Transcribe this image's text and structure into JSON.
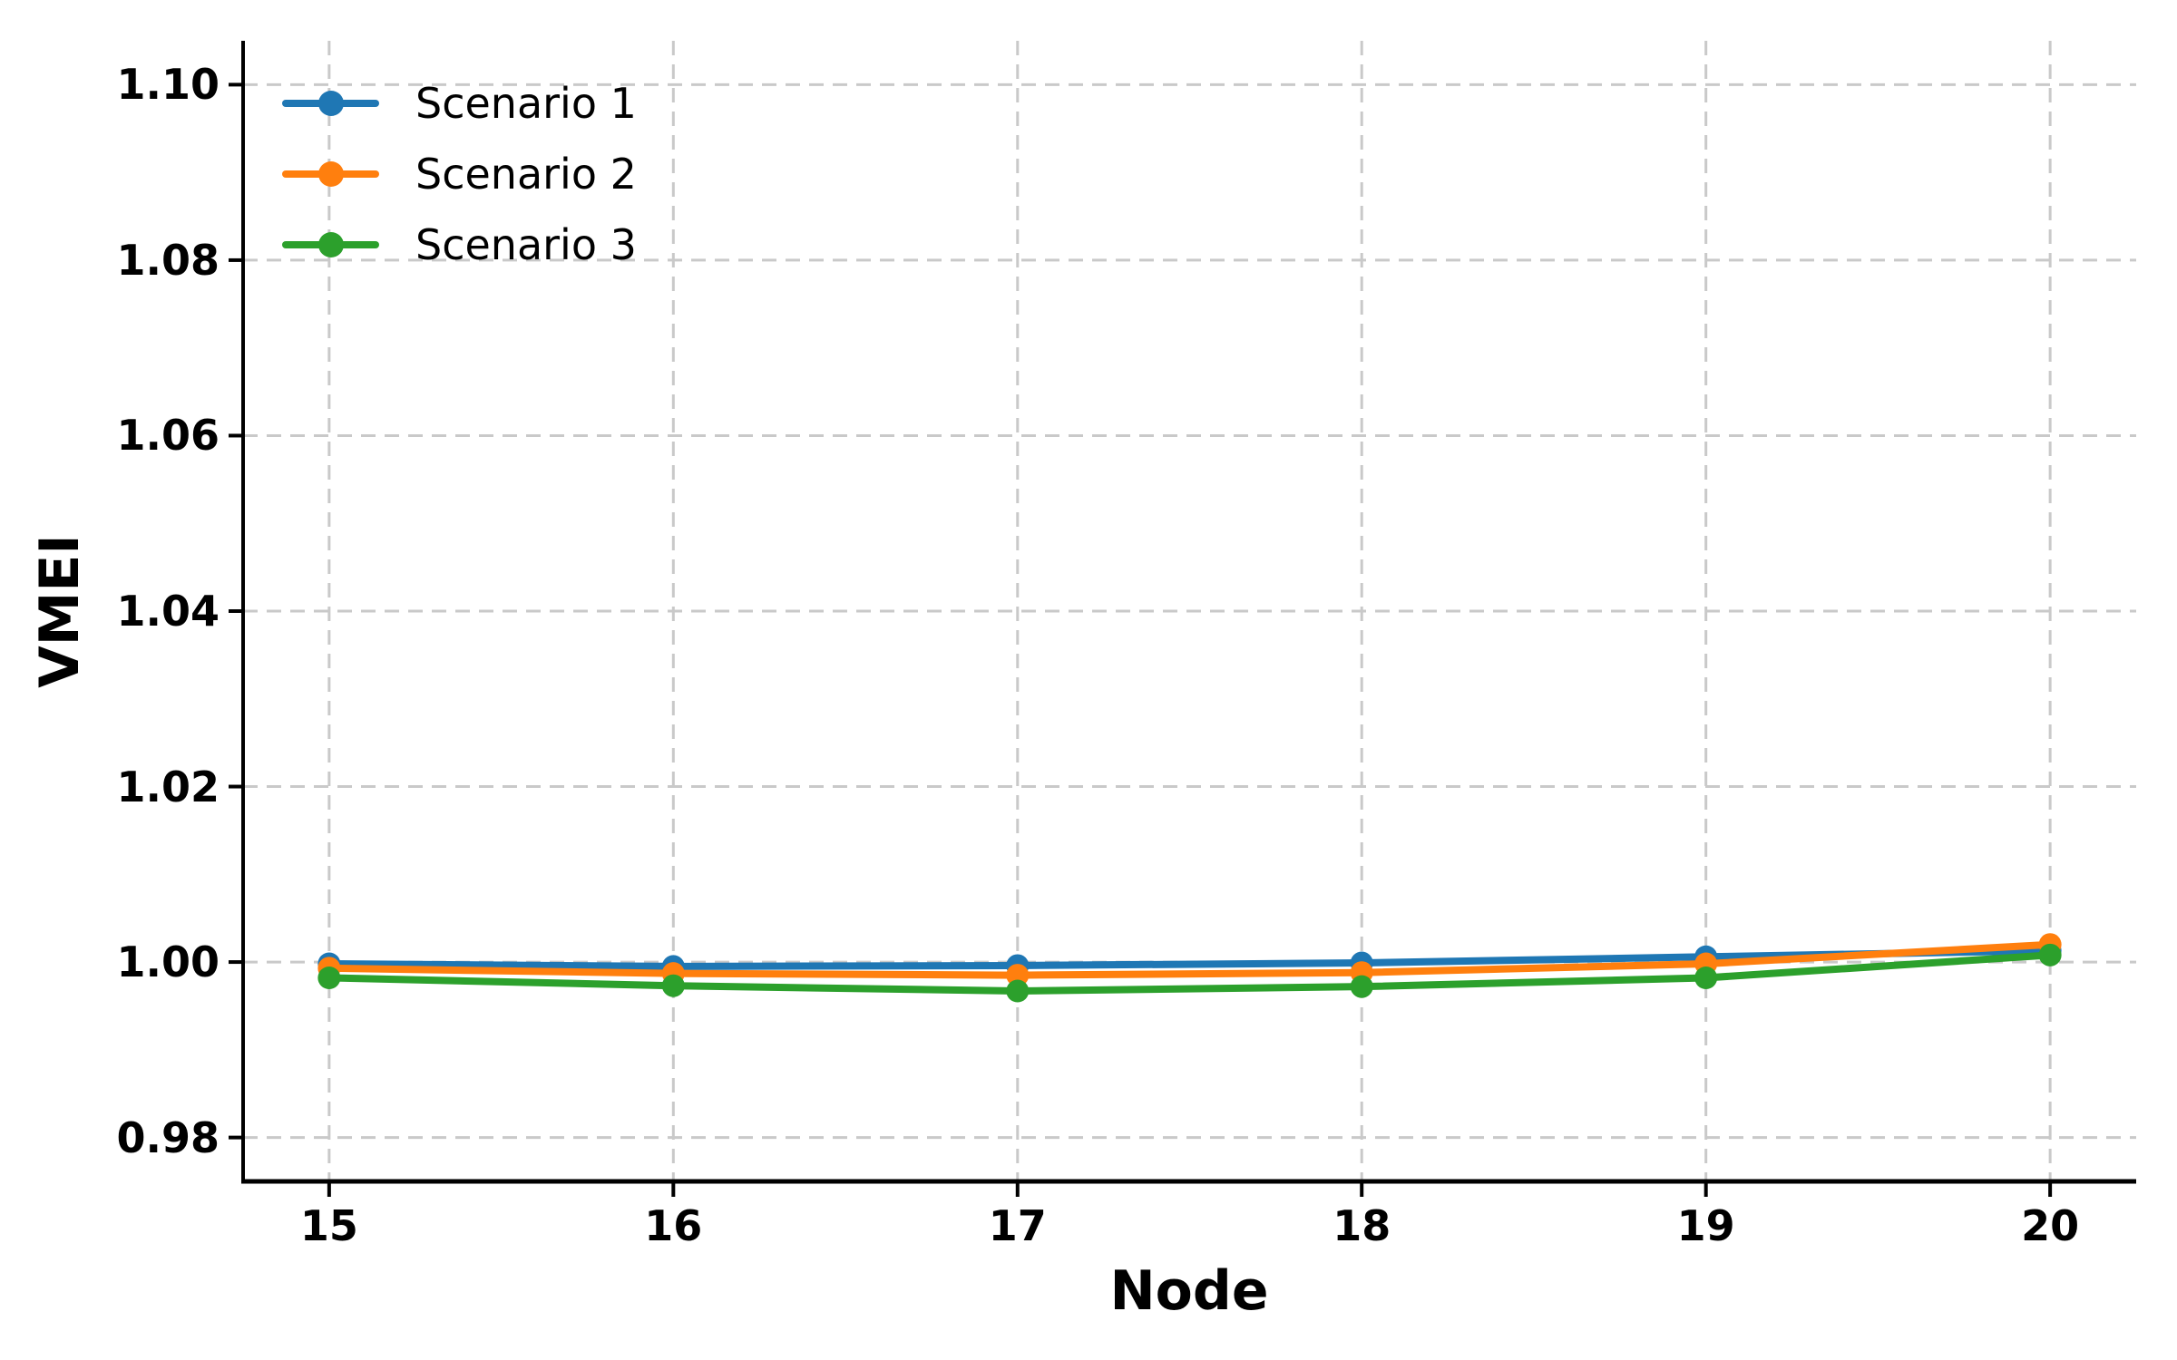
{
  "figure": {
    "background": "#ffffff"
  },
  "legend": {
    "position": "upper-left",
    "items": [
      {
        "label": "Scenario 1",
        "color": "#1f77b4"
      },
      {
        "label": "Scenario 2",
        "color": "#ff7f0e"
      },
      {
        "label": "Scenario 3",
        "color": "#2ca02c"
      }
    ]
  },
  "chart_data": {
    "type": "line",
    "title": "",
    "xlabel": "Node",
    "ylabel": "VMEI",
    "x": [
      15,
      16,
      17,
      18,
      19,
      20
    ],
    "series": [
      {
        "name": "Scenario 1",
        "color": "#1f77b4",
        "marker": "o",
        "values": [
          0.9998,
          0.9995,
          0.9996,
          0.9999,
          1.0006,
          1.0013
        ]
      },
      {
        "name": "Scenario 2",
        "color": "#ff7f0e",
        "marker": "o",
        "values": [
          0.9993,
          0.9987,
          0.9985,
          0.9988,
          0.9998,
          1.002
        ]
      },
      {
        "name": "Scenario 3",
        "color": "#2ca02c",
        "marker": "o",
        "values": [
          0.9982,
          0.9973,
          0.9967,
          0.9972,
          0.9982,
          1.0008
        ]
      }
    ],
    "xlim": [
      14.75,
      20.25
    ],
    "ylim": [
      0.975,
      1.105
    ],
    "xticks": [
      "15",
      "16",
      "17",
      "18",
      "19",
      "20"
    ],
    "xtick_values": [
      15,
      16,
      17,
      18,
      19,
      20
    ],
    "yticks": [
      "1.10",
      "1.08",
      "1.06",
      "1.04",
      "1.02",
      "1.00",
      "0.98"
    ],
    "ytick_values": [
      1.1,
      1.08,
      1.06,
      1.04,
      1.02,
      1.0,
      0.98
    ],
    "grid": "dashed",
    "grid_color": "#c9c9c9",
    "legend_position": "upper left",
    "axis_color": "#000000"
  }
}
